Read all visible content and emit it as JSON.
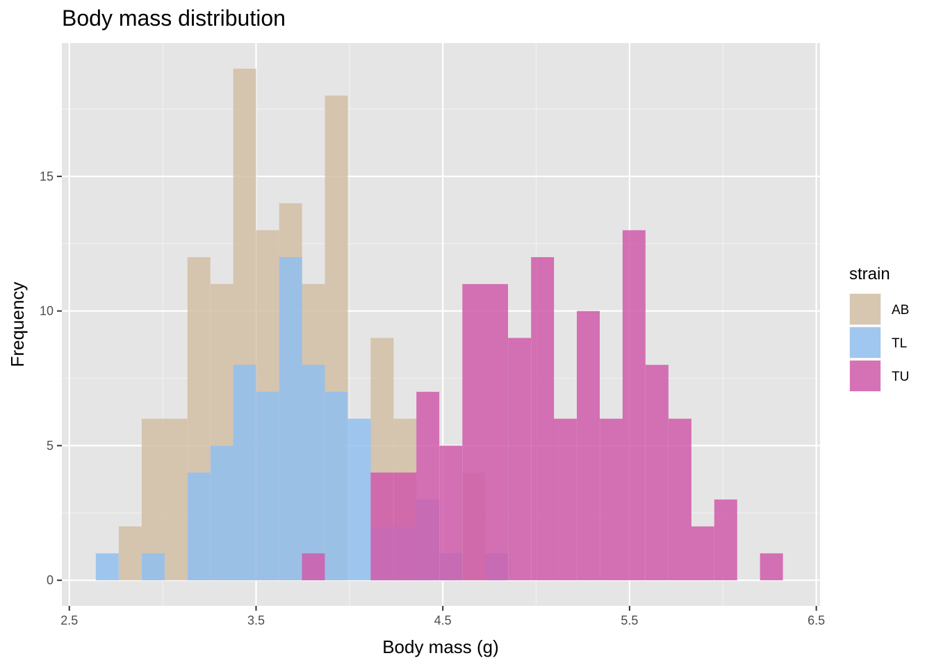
{
  "chart_data": {
    "type": "bar",
    "subtype": "overlapping histogram",
    "title": "Body mass distribution",
    "xlabel": "Body mass (g)",
    "ylabel": "Frequency",
    "xlim": [
      2.46,
      6.52
    ],
    "ylim": [
      -0.95,
      19.95
    ],
    "x_ticks": [
      2.5,
      3.5,
      4.5,
      5.5,
      6.5
    ],
    "x_tick_labels": [
      "2.5",
      "3.5",
      "4.5",
      "5.5",
      "6.5"
    ],
    "y_ticks": [
      0,
      5,
      10,
      15
    ],
    "y_tick_labels": [
      "0",
      "5",
      "10",
      "15"
    ],
    "grid": true,
    "bin_width": 0.1226,
    "bin_centers": [
      2.703,
      2.826,
      2.949,
      3.071,
      3.194,
      3.317,
      3.439,
      3.562,
      3.685,
      3.807,
      3.93,
      4.053,
      4.175,
      4.298,
      4.42,
      4.543,
      4.666,
      4.788,
      4.911,
      5.034,
      5.156,
      5.279,
      5.402,
      5.524,
      5.647,
      5.77,
      5.892,
      6.015,
      6.138,
      6.26
    ],
    "legend": {
      "title": "strain",
      "position": "right"
    },
    "series": [
      {
        "name": "AB",
        "color": "#D2BEA5",
        "values": [
          0,
          2,
          6,
          6,
          12,
          11,
          19,
          13,
          14,
          11,
          18,
          0,
          9,
          6,
          0,
          0,
          4,
          0,
          0,
          0,
          0,
          0,
          0,
          0,
          0,
          0,
          0,
          0,
          0,
          0
        ]
      },
      {
        "name": "TL",
        "color": "#90C0F0",
        "values": [
          1,
          0,
          1,
          0,
          4,
          5,
          8,
          7,
          12,
          8,
          7,
          6,
          2,
          2,
          3,
          1,
          0,
          1,
          0,
          0,
          0,
          0,
          0,
          0,
          0,
          0,
          0,
          0,
          0,
          0
        ]
      },
      {
        "name": "TU",
        "color": "#D05AAA",
        "values": [
          0,
          0,
          0,
          0,
          0,
          0,
          0,
          0,
          0,
          1,
          0,
          0,
          4,
          4,
          7,
          5,
          11,
          11,
          9,
          12,
          6,
          10,
          6,
          13,
          8,
          6,
          2,
          3,
          0,
          1
        ]
      }
    ]
  }
}
